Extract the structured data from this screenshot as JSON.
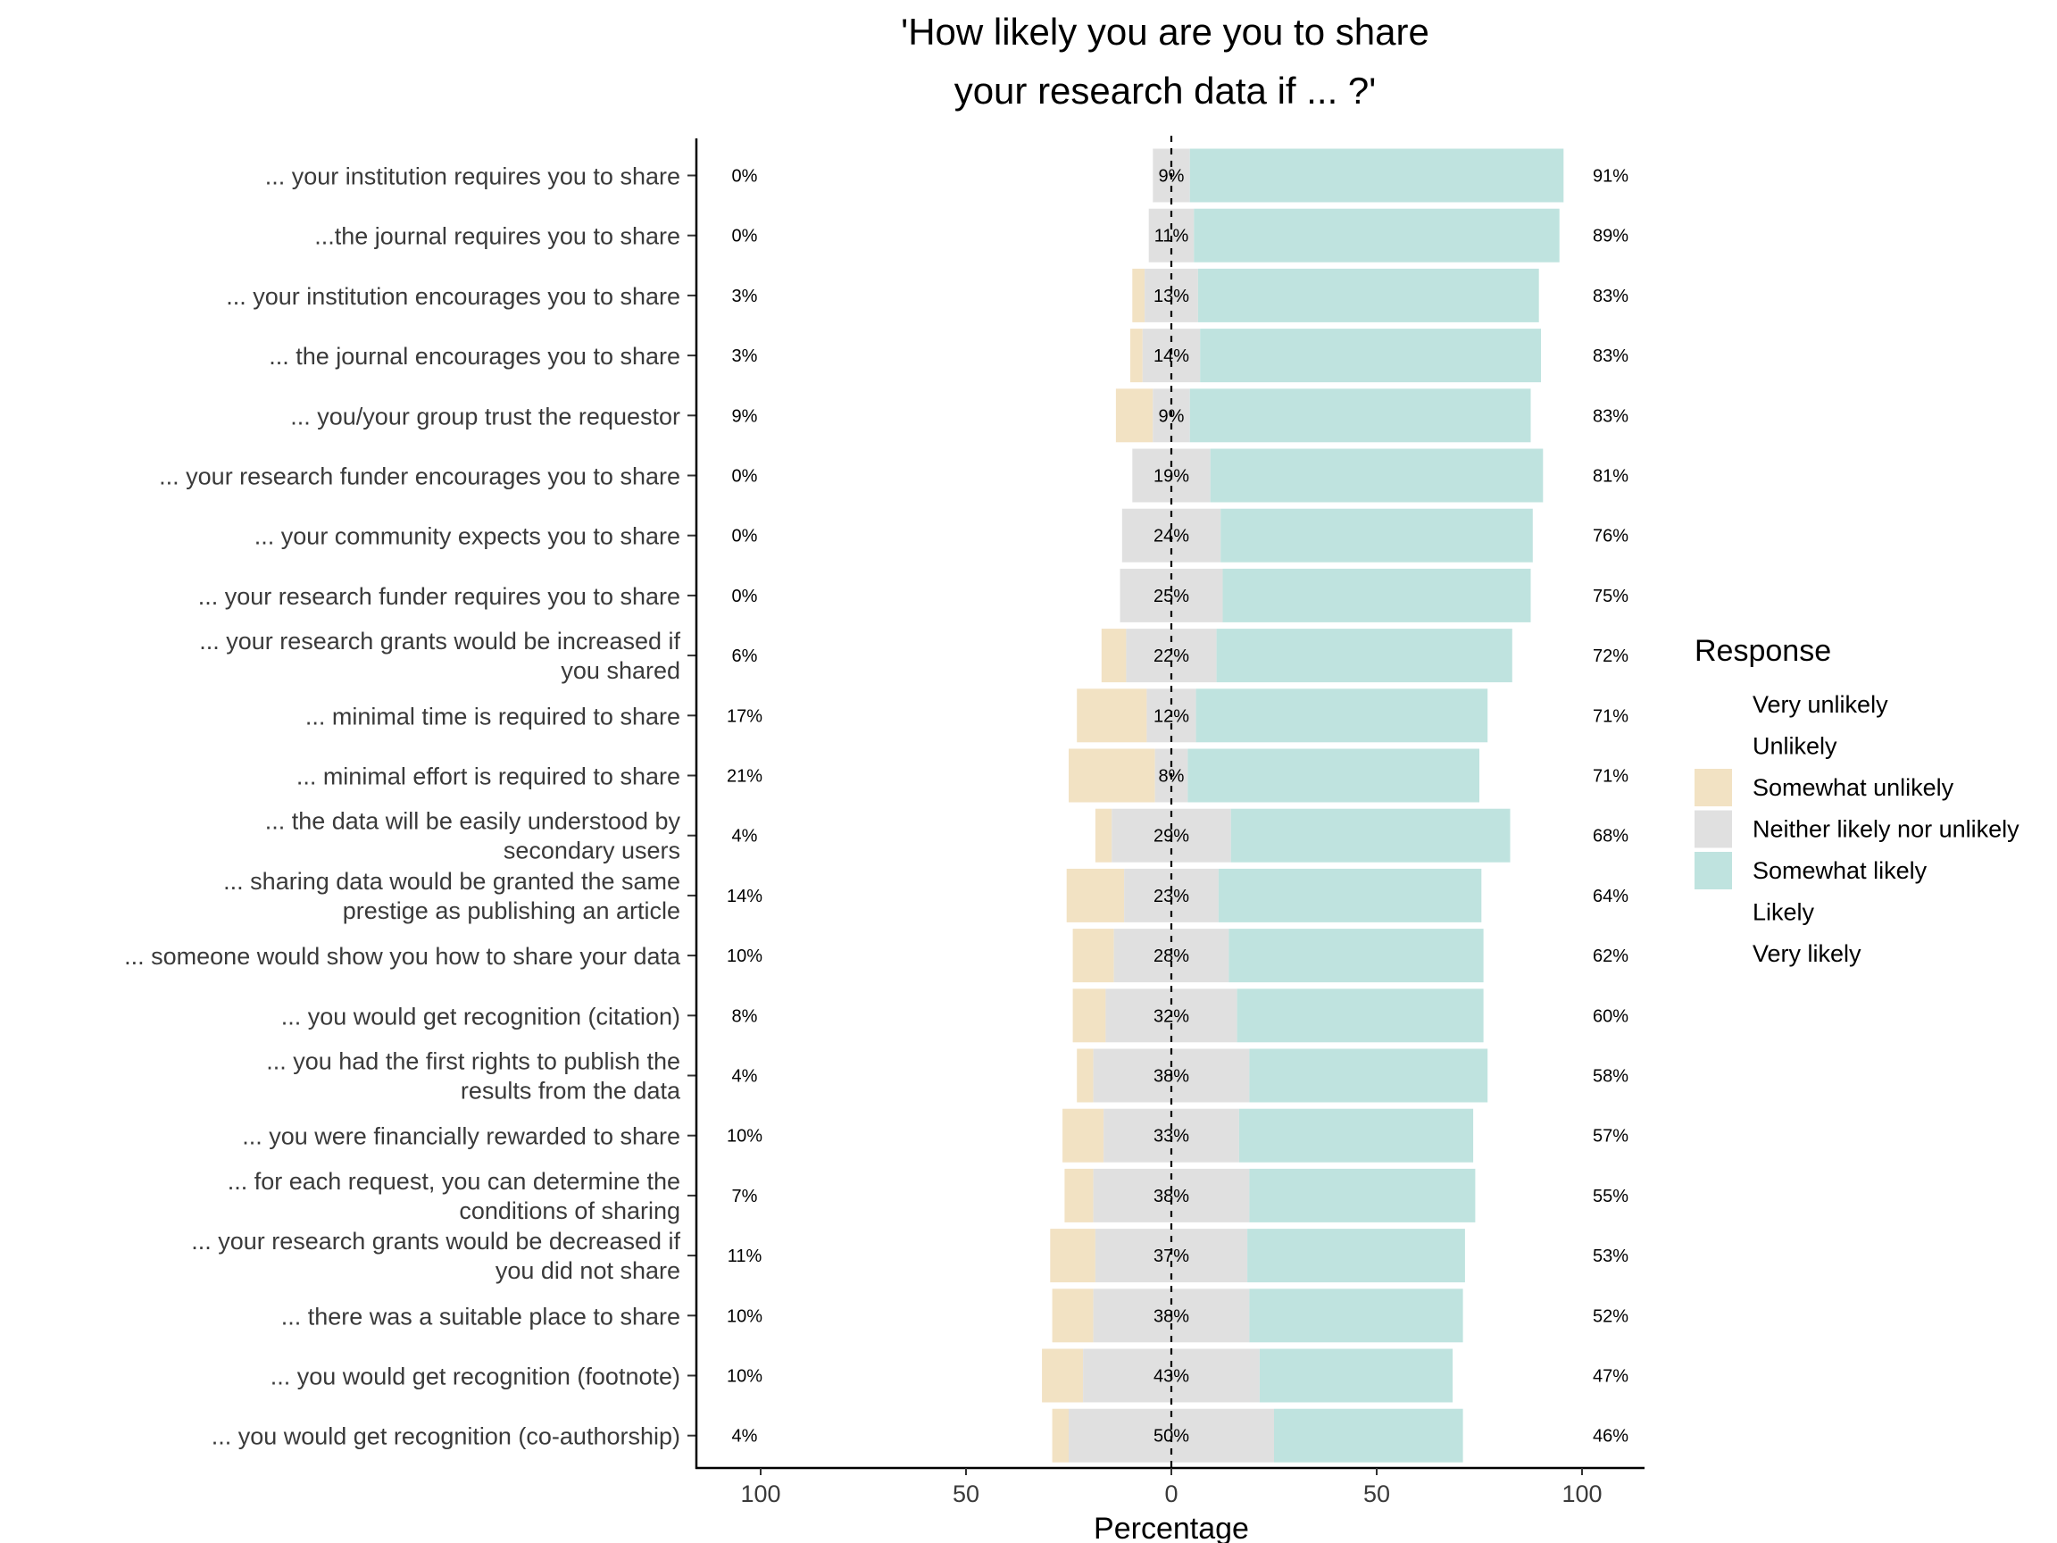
{
  "chart_data": {
    "type": "bar",
    "title": [
      "'How likely you are you to share",
      "your research data if ... ?'"
    ],
    "xlabel": "Percentage",
    "xlim": [
      -100,
      100
    ],
    "x_ticks": [
      -100,
      -50,
      0,
      50,
      100
    ],
    "x_tick_labels": [
      "100",
      "50",
      "0",
      "50",
      "100"
    ],
    "legend_title": "Response",
    "legend_position": "right",
    "legend": [
      {
        "name": "Very unlikely",
        "color": null
      },
      {
        "name": "Unlikely",
        "color": null
      },
      {
        "name": "Somewhat unlikely",
        "color": "#F2E2C3"
      },
      {
        "name": "Neither likely nor unlikely",
        "color": "#E0E0E0"
      },
      {
        "name": "Somewhat likely",
        "color": "#BFE3DF"
      },
      {
        "name": "Likely",
        "color": null
      },
      {
        "name": "Very likely",
        "color": null
      }
    ],
    "rows": [
      {
        "label": [
          "... your institution requires you to share"
        ],
        "unlikely": 0,
        "neutral": 9,
        "likely": 91,
        "unlikely_label": "0%",
        "neutral_label": "9%",
        "likely_label": "91%"
      },
      {
        "label": [
          "...the journal requires you to share"
        ],
        "unlikely": 0,
        "neutral": 11,
        "likely": 89,
        "unlikely_label": "0%",
        "neutral_label": "11%",
        "likely_label": "89%"
      },
      {
        "label": [
          "... your institution encourages you to share"
        ],
        "unlikely": 3,
        "neutral": 13,
        "likely": 83,
        "unlikely_label": "3%",
        "neutral_label": "13%",
        "likely_label": "83%"
      },
      {
        "label": [
          "... the journal encourages you to share"
        ],
        "unlikely": 3,
        "neutral": 14,
        "likely": 83,
        "unlikely_label": "3%",
        "neutral_label": "14%",
        "likely_label": "83%"
      },
      {
        "label": [
          "... you/your group trust the requestor"
        ],
        "unlikely": 9,
        "neutral": 9,
        "likely": 83,
        "unlikely_label": "9%",
        "neutral_label": "9%",
        "likely_label": "83%"
      },
      {
        "label": [
          "... your research funder encourages you to share"
        ],
        "unlikely": 0,
        "neutral": 19,
        "likely": 81,
        "unlikely_label": "0%",
        "neutral_label": "19%",
        "likely_label": "81%"
      },
      {
        "label": [
          "... your community expects you to share"
        ],
        "unlikely": 0,
        "neutral": 24,
        "likely": 76,
        "unlikely_label": "0%",
        "neutral_label": "24%",
        "likely_label": "76%"
      },
      {
        "label": [
          "... your research funder requires you to share"
        ],
        "unlikely": 0,
        "neutral": 25,
        "likely": 75,
        "unlikely_label": "0%",
        "neutral_label": "25%",
        "likely_label": "75%"
      },
      {
        "label": [
          "... your research grants would be increased if",
          "you shared"
        ],
        "unlikely": 6,
        "neutral": 22,
        "likely": 72,
        "unlikely_label": "6%",
        "neutral_label": "22%",
        "likely_label": "72%"
      },
      {
        "label": [
          "... minimal time is required to share"
        ],
        "unlikely": 17,
        "neutral": 12,
        "likely": 71,
        "unlikely_label": "17%",
        "neutral_label": "12%",
        "likely_label": "71%"
      },
      {
        "label": [
          "... minimal effort is required to share"
        ],
        "unlikely": 21,
        "neutral": 8,
        "likely": 71,
        "unlikely_label": "21%",
        "neutral_label": "8%",
        "likely_label": "71%"
      },
      {
        "label": [
          "... the data will be easily understood by",
          "secondary users"
        ],
        "unlikely": 4,
        "neutral": 29,
        "likely": 68,
        "unlikely_label": "4%",
        "neutral_label": "29%",
        "likely_label": "68%"
      },
      {
        "label": [
          "... sharing data would be granted the same",
          "prestige as publishing an article"
        ],
        "unlikely": 14,
        "neutral": 23,
        "likely": 64,
        "unlikely_label": "14%",
        "neutral_label": "23%",
        "likely_label": "64%"
      },
      {
        "label": [
          "... someone would show you how to share your data"
        ],
        "unlikely": 10,
        "neutral": 28,
        "likely": 62,
        "unlikely_label": "10%",
        "neutral_label": "28%",
        "likely_label": "62%"
      },
      {
        "label": [
          "... you would get recognition (citation)"
        ],
        "unlikely": 8,
        "neutral": 32,
        "likely": 60,
        "unlikely_label": "8%",
        "neutral_label": "32%",
        "likely_label": "60%"
      },
      {
        "label": [
          "... you had the first rights to publish the",
          "results from the data"
        ],
        "unlikely": 4,
        "neutral": 38,
        "likely": 58,
        "unlikely_label": "4%",
        "neutral_label": "38%",
        "likely_label": "58%"
      },
      {
        "label": [
          "... you were financially rewarded to share"
        ],
        "unlikely": 10,
        "neutral": 33,
        "likely": 57,
        "unlikely_label": "10%",
        "neutral_label": "33%",
        "likely_label": "57%"
      },
      {
        "label": [
          "... for each request, you can determine the",
          "conditions of sharing"
        ],
        "unlikely": 7,
        "neutral": 38,
        "likely": 55,
        "unlikely_label": "7%",
        "neutral_label": "38%",
        "likely_label": "55%"
      },
      {
        "label": [
          "... your research grants would be decreased if",
          "you did not share"
        ],
        "unlikely": 11,
        "neutral": 37,
        "likely": 53,
        "unlikely_label": "11%",
        "neutral_label": "37%",
        "likely_label": "53%"
      },
      {
        "label": [
          "... there was a suitable place to share"
        ],
        "unlikely": 10,
        "neutral": 38,
        "likely": 52,
        "unlikely_label": "10%",
        "neutral_label": "38%",
        "likely_label": "52%"
      },
      {
        "label": [
          "... you would get recognition (footnote)"
        ],
        "unlikely": 10,
        "neutral": 43,
        "likely": 47,
        "unlikely_label": "10%",
        "neutral_label": "43%",
        "likely_label": "47%"
      },
      {
        "label": [
          "... you would get recognition (co-authorship)"
        ],
        "unlikely": 4,
        "neutral": 50,
        "likely": 46,
        "unlikely_label": "4%",
        "neutral_label": "50%",
        "likely_label": "46%"
      }
    ]
  }
}
